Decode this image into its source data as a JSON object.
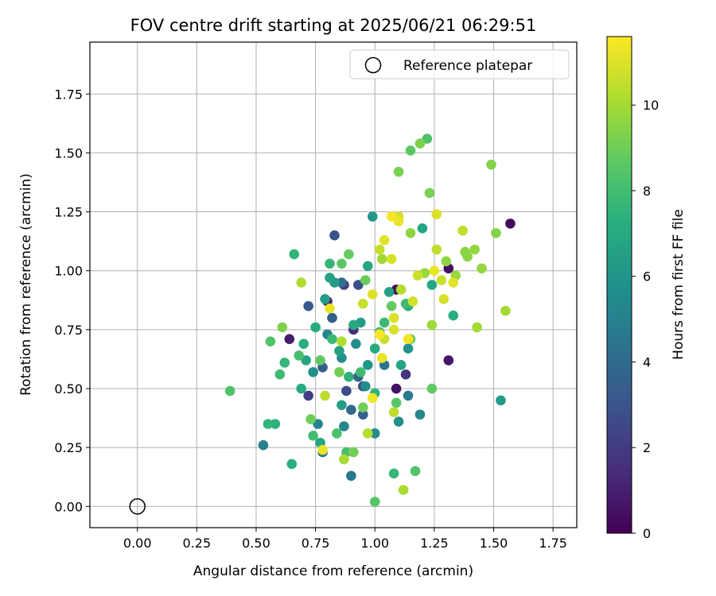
{
  "chart_data": {
    "type": "scatter",
    "title": "FOV centre drift starting at 2025/06/21 06:29:51",
    "xlabel": "Angular distance from reference (arcmin)",
    "ylabel": "Rotation from reference (arcmin)",
    "xlim": [
      -0.2,
      1.85
    ],
    "ylim": [
      -0.09,
      1.97
    ],
    "xticks": [
      "0.00",
      "0.25",
      "0.50",
      "0.75",
      "1.00",
      "1.25",
      "1.50",
      "1.75"
    ],
    "xtick_values": [
      0,
      0.25,
      0.5,
      0.75,
      1.0,
      1.25,
      1.5,
      1.75
    ],
    "yticks": [
      "0.00",
      "0.25",
      "0.50",
      "0.75",
      "1.00",
      "1.25",
      "1.50",
      "1.75"
    ],
    "ytick_values": [
      0,
      0.25,
      0.5,
      0.75,
      1.0,
      1.25,
      1.5,
      1.75
    ],
    "grid": true,
    "legend": {
      "placement": "top-right",
      "label": "Reference platepar"
    },
    "reference_point": {
      "x": 0.0,
      "y": 0.0
    },
    "colorbar": {
      "label": "Hours from first FF file",
      "colormap": "viridis",
      "min": 0,
      "max": 11.6,
      "ticks": [
        "0",
        "2",
        "4",
        "6",
        "8",
        "10"
      ],
      "tick_values": [
        0,
        2,
        4,
        6,
        8,
        10
      ]
    },
    "series": [
      {
        "points": [
          [
            1.57,
            1.2,
            0.3
          ],
          [
            1.31,
            1.01,
            0.5
          ],
          [
            1.31,
            0.62,
            0.7
          ],
          [
            1.09,
            0.92,
            0.4
          ],
          [
            1.09,
            0.5,
            0.6
          ],
          [
            0.64,
            0.71,
            0.9
          ],
          [
            0.8,
            0.87,
            1.0
          ],
          [
            0.91,
            0.75,
            1.5
          ],
          [
            1.13,
            0.56,
            1.8
          ],
          [
            0.87,
            0.94,
            2.0
          ],
          [
            0.72,
            0.47,
            2.2
          ],
          [
            0.95,
            0.51,
            2.4
          ],
          [
            0.88,
            0.49,
            2.6
          ],
          [
            0.93,
            0.94,
            2.8
          ],
          [
            0.83,
            1.15,
            3.0
          ],
          [
            0.72,
            0.85,
            3.2
          ],
          [
            0.78,
            0.59,
            3.3
          ],
          [
            0.95,
            0.39,
            3.5
          ],
          [
            0.82,
            0.8,
            3.6
          ],
          [
            0.93,
            0.55,
            3.8
          ],
          [
            0.9,
            0.41,
            4.0
          ],
          [
            0.86,
            0.95,
            4.2
          ],
          [
            1.04,
            0.6,
            4.4
          ],
          [
            0.78,
            0.23,
            4.6
          ],
          [
            0.9,
            0.13,
            4.7
          ],
          [
            1.14,
            0.47,
            4.8
          ],
          [
            0.53,
            0.26,
            5.0
          ],
          [
            0.76,
            0.35,
            5.1
          ],
          [
            0.8,
            0.73,
            5.2
          ],
          [
            0.87,
            0.34,
            5.3
          ],
          [
            1.19,
            0.39,
            5.4
          ],
          [
            0.92,
            0.69,
            5.5
          ],
          [
            1.0,
            0.31,
            5.5
          ],
          [
            0.96,
            0.51,
            5.6
          ],
          [
            0.74,
            0.57,
            5.7
          ],
          [
            0.86,
            0.63,
            5.7
          ],
          [
            1.1,
            0.36,
            5.8
          ],
          [
            1.14,
            0.67,
            5.9
          ],
          [
            0.97,
            0.6,
            6.0
          ],
          [
            0.99,
            1.23,
            6.1
          ],
          [
            1.53,
            0.45,
            6.2
          ],
          [
            0.79,
            0.88,
            6.3
          ],
          [
            0.83,
            0.95,
            6.3
          ],
          [
            0.86,
            0.43,
            6.4
          ],
          [
            0.94,
            0.78,
            6.4
          ],
          [
            1.06,
            0.91,
            6.5
          ],
          [
            0.85,
            0.66,
            6.5
          ],
          [
            0.81,
            0.97,
            6.6
          ],
          [
            0.71,
            0.62,
            6.7
          ],
          [
            1.11,
            0.6,
            6.7
          ],
          [
            0.97,
            1.02,
            6.8
          ],
          [
            0.77,
            0.27,
            6.8
          ],
          [
            1.24,
            0.94,
            6.9
          ],
          [
            1.2,
            1.18,
            6.9
          ],
          [
            0.91,
            0.77,
            7.0
          ],
          [
            0.69,
            0.5,
            7.0
          ],
          [
            0.75,
            0.76,
            7.1
          ],
          [
            1.0,
            0.67,
            7.1
          ],
          [
            1.33,
            0.81,
            7.2
          ],
          [
            0.7,
            0.69,
            7.2
          ],
          [
            0.65,
            0.18,
            7.3
          ],
          [
            1.14,
            0.85,
            7.3
          ],
          [
            0.89,
            0.55,
            7.4
          ],
          [
            0.58,
            0.35,
            7.4
          ],
          [
            0.66,
            1.07,
            7.5
          ],
          [
            1.0,
            0.48,
            7.5
          ],
          [
            0.55,
            0.35,
            7.6
          ],
          [
            0.62,
            0.61,
            7.6
          ],
          [
            1.08,
            0.14,
            7.7
          ],
          [
            0.81,
            1.03,
            7.7
          ],
          [
            1.04,
            0.78,
            7.8
          ],
          [
            0.82,
            0.71,
            7.8
          ],
          [
            1.13,
            0.86,
            7.9
          ],
          [
            0.6,
            0.56,
            7.9
          ],
          [
            0.74,
            0.3,
            8.0
          ],
          [
            0.94,
            0.57,
            8.0
          ],
          [
            0.68,
            0.64,
            8.1
          ],
          [
            0.88,
            0.23,
            8.1
          ],
          [
            1.02,
            0.74,
            8.2
          ],
          [
            0.84,
            0.31,
            8.2
          ],
          [
            1.22,
            1.56,
            8.3
          ],
          [
            0.39,
            0.49,
            8.3
          ],
          [
            1.17,
            0.15,
            8.4
          ],
          [
            0.56,
            0.7,
            8.4
          ],
          [
            1.09,
            0.44,
            8.5
          ],
          [
            1.0,
            0.02,
            8.5
          ],
          [
            1.15,
            1.51,
            8.6
          ],
          [
            0.86,
            1.03,
            8.6
          ],
          [
            1.24,
            0.5,
            8.7
          ],
          [
            0.77,
            0.62,
            8.7
          ],
          [
            1.07,
            0.85,
            8.8
          ],
          [
            0.89,
            1.07,
            8.8
          ],
          [
            0.96,
            0.96,
            8.9
          ],
          [
            1.15,
            0.71,
            8.9
          ],
          [
            0.95,
            0.42,
            9.0
          ],
          [
            0.73,
            0.37,
            9.0
          ],
          [
            0.85,
            0.57,
            9.1
          ],
          [
            0.91,
            0.23,
            9.1
          ],
          [
            1.23,
            1.33,
            9.2
          ],
          [
            1.1,
            1.42,
            9.2
          ],
          [
            1.19,
            1.54,
            9.3
          ],
          [
            0.61,
            0.76,
            9.3
          ],
          [
            1.49,
            1.45,
            9.4
          ],
          [
            1.51,
            1.16,
            9.4
          ],
          [
            1.39,
            1.06,
            9.5
          ],
          [
            1.38,
            1.08,
            9.5
          ],
          [
            1.3,
            1.04,
            9.6
          ],
          [
            1.15,
            1.16,
            9.6
          ],
          [
            1.45,
            1.01,
            9.7
          ],
          [
            1.42,
            1.09,
            9.7
          ],
          [
            1.34,
            0.98,
            9.8
          ],
          [
            1.21,
            0.99,
            9.8
          ],
          [
            1.03,
            1.05,
            9.9
          ],
          [
            1.24,
            0.77,
            9.9
          ],
          [
            1.55,
            0.83,
            10.0
          ],
          [
            1.43,
            0.76,
            10.0
          ],
          [
            0.87,
            0.2,
            10.1
          ],
          [
            1.12,
            0.07,
            10.1
          ],
          [
            0.69,
            0.95,
            10.2
          ],
          [
            0.86,
            0.7,
            10.2
          ],
          [
            1.11,
            0.92,
            10.3
          ],
          [
            0.97,
            0.31,
            10.3
          ],
          [
            1.08,
            0.4,
            10.4
          ],
          [
            0.79,
            0.47,
            10.4
          ],
          [
            1.26,
            1.09,
            10.5
          ],
          [
            1.37,
            1.17,
            10.5
          ],
          [
            1.28,
            0.96,
            10.6
          ],
          [
            0.95,
            0.86,
            10.6
          ],
          [
            1.04,
            0.71,
            10.7
          ],
          [
            1.18,
            0.98,
            10.7
          ],
          [
            1.1,
            1.23,
            10.8
          ],
          [
            1.16,
            0.87,
            10.8
          ],
          [
            1.07,
            1.05,
            10.9
          ],
          [
            1.08,
            0.75,
            10.9
          ],
          [
            0.99,
            0.9,
            11.0
          ],
          [
            1.26,
            1.24,
            11.0
          ],
          [
            1.04,
            1.13,
            11.1
          ],
          [
            1.33,
            0.95,
            11.1
          ],
          [
            0.78,
            0.24,
            11.2
          ],
          [
            1.1,
            1.21,
            11.2
          ],
          [
            1.25,
            1.0,
            11.3
          ],
          [
            1.03,
            0.63,
            11.3
          ],
          [
            1.14,
            0.71,
            11.4
          ],
          [
            0.99,
            0.46,
            11.4
          ],
          [
            1.07,
            1.23,
            11.5
          ],
          [
            1.02,
            0.73,
            11.5
          ],
          [
            0.81,
            0.84,
            11.2
          ],
          [
            1.08,
            0.8,
            11.0
          ],
          [
            1.29,
            0.88,
            10.9
          ],
          [
            1.02,
            1.09,
            10.6
          ]
        ]
      }
    ]
  }
}
